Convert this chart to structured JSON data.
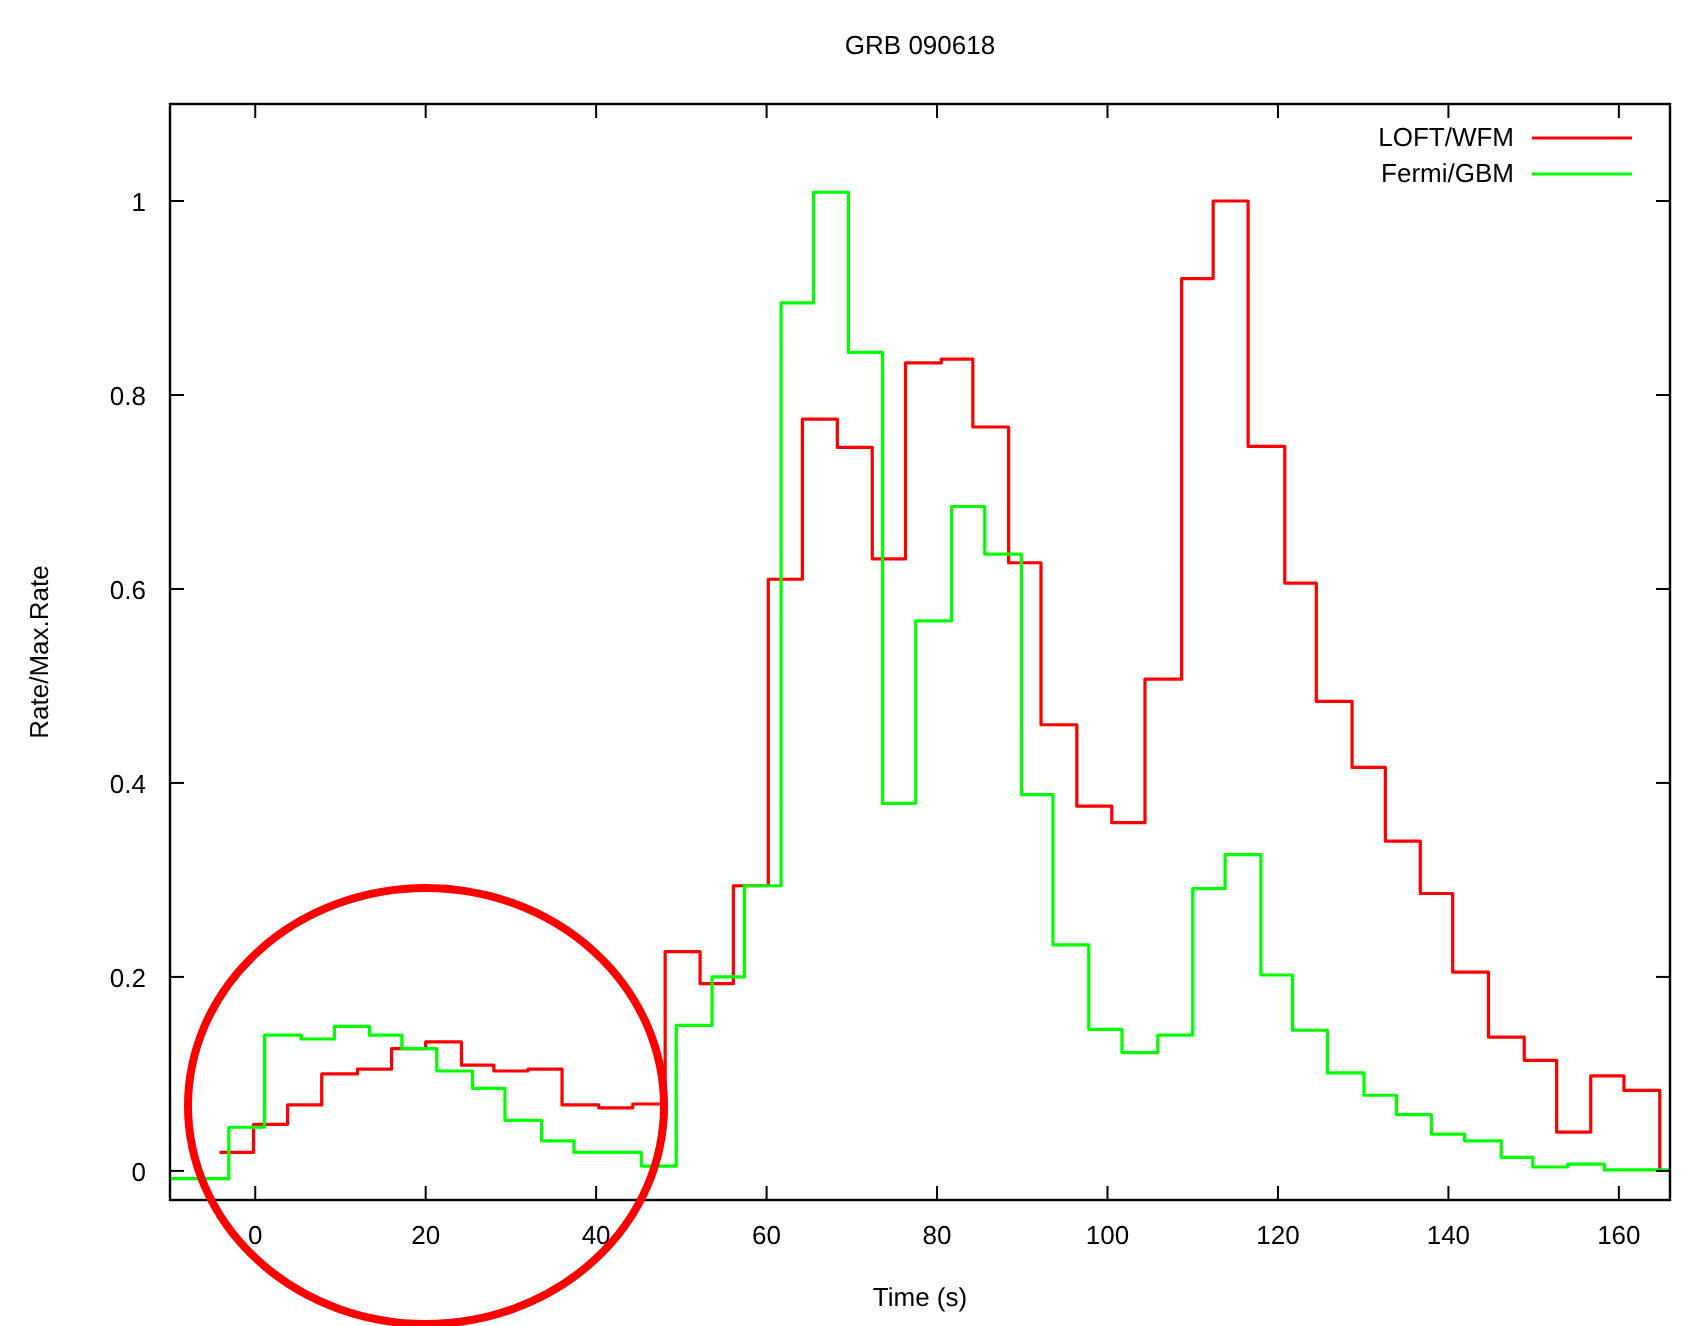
{
  "chart_data": {
    "type": "step",
    "title": "GRB 090618",
    "xlabel": "Time (s)",
    "ylabel": "Rate/Max.Rate",
    "xlim": [
      -10,
      166
    ],
    "ylim": [
      -0.03,
      1.1
    ],
    "xticks": [
      0,
      20,
      40,
      60,
      80,
      100,
      120,
      140,
      160
    ],
    "yticks": [
      0,
      0.2,
      0.4,
      0.6,
      0.8,
      1
    ],
    "grid": false,
    "legend": "top right",
    "series": [
      {
        "name": "LOFT/WFM",
        "color": "#ff0000",
        "x": [
          -4.2,
          -0.2,
          3.8,
          7.8,
          12,
          16,
          20,
          24.2,
          28,
          32,
          36,
          40.3,
          44.3,
          48.1,
          52.2,
          56.1,
          60.2,
          64.2,
          68.3,
          72.4,
          76.3,
          80.5,
          84.2,
          88.4,
          92.2,
          96.4,
          100.5,
          104.4,
          108.7,
          112.4,
          116.5,
          120.8,
          124.5,
          128.7,
          132.6,
          136.7,
          140.5,
          144.7,
          148.9,
          152.7,
          156.7,
          160.6,
          164.8
        ],
        "values": [
          0.019,
          0.048,
          0.068,
          0.1,
          0.105,
          0.126,
          0.133,
          0.109,
          0.103,
          0.105,
          0.068,
          0.065,
          0.069,
          0.226,
          0.193,
          0.294,
          0.61,
          0.775,
          0.746,
          0.631,
          0.833,
          0.837,
          0.767,
          0.627,
          0.46,
          0.376,
          0.359,
          0.507,
          0.92,
          1.0,
          0.747,
          0.606,
          0.484,
          0.416,
          0.34,
          0.286,
          0.205,
          0.138,
          0.114,
          0.04,
          0.098,
          0.083,
          0
        ]
      },
      {
        "name": "Fermi/GBM",
        "color": "#00ff00",
        "x": [
          -10,
          -3.1,
          1.1,
          5.4,
          9.3,
          13.4,
          17.2,
          21.3,
          25.5,
          29.3,
          33.6,
          37.4,
          45.3,
          49.4,
          53.6,
          57.4,
          61.7,
          65.5,
          69.6,
          73.6,
          77.5,
          81.7,
          85.6,
          89.9,
          93.6,
          97.8,
          101.7,
          105.9,
          110,
          113.8,
          118,
          121.7,
          125.8,
          130.1,
          133.9,
          138,
          141.9,
          146.2,
          149.9,
          154,
          158.3,
          166
        ],
        "values": [
          -0.008,
          0.045,
          0.14,
          0.136,
          0.149,
          0.14,
          0.126,
          0.103,
          0.085,
          0.052,
          0.031,
          0.019,
          0.005,
          0.15,
          0.2,
          0.294,
          0.895,
          1.009,
          0.844,
          0.379,
          0.567,
          0.685,
          0.636,
          0.388,
          0.233,
          0.146,
          0.122,
          0.14,
          0.291,
          0.326,
          0.202,
          0.145,
          0.101,
          0.078,
          0.058,
          0.038,
          0.031,
          0.014,
          0.004,
          0.007,
          0.001,
          0.001
        ]
      }
    ]
  }
}
